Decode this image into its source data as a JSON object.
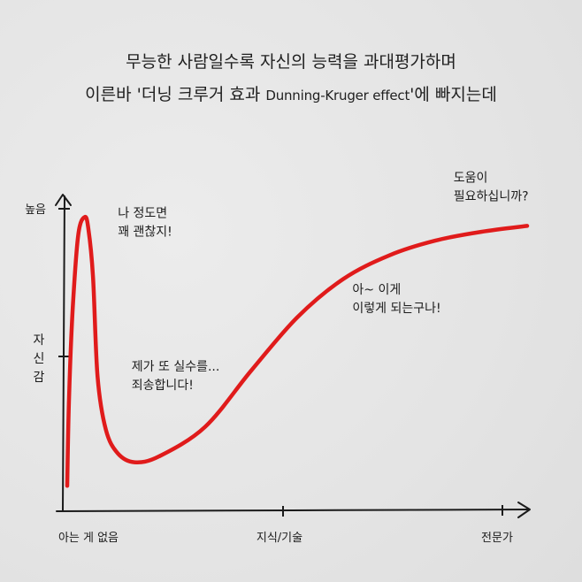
{
  "header": {
    "line1": "무능한 사람일수록 자신의 능력을 과대평가하며",
    "line2_before": "이른바 '더닝 크루거 효과 ",
    "line2_en": "Dunning-Kruger effect",
    "line2_after": "'에 빠지는데"
  },
  "chart_data": {
    "type": "line",
    "xlabel": "",
    "ylabel": "자신감",
    "x_ticks": [
      "아는 게 없음",
      "지식/기술",
      "전문가"
    ],
    "y_ticks": [
      "높음"
    ],
    "xlim": [
      0,
      1
    ],
    "ylim": [
      0,
      1
    ],
    "series": [
      {
        "color": "#e01b1b",
        "x": [
          0.0,
          0.004,
          0.012,
          0.024,
          0.038,
          0.046,
          0.056,
          0.066,
          0.084,
          0.11,
          0.146,
          0.2,
          0.3,
          0.4,
          0.5,
          0.6,
          0.7,
          0.8,
          0.9,
          1.0
        ],
        "y": [
          0.05,
          0.35,
          0.65,
          0.9,
          0.96,
          0.92,
          0.76,
          0.42,
          0.24,
          0.16,
          0.13,
          0.15,
          0.25,
          0.44,
          0.62,
          0.75,
          0.83,
          0.88,
          0.91,
          0.93
        ]
      }
    ],
    "annotations": [
      {
        "lines": [
          "나 정도면",
          "꽤 괜찮지!"
        ],
        "x": 0.11,
        "y": 0.96
      },
      {
        "lines": [
          "제가 또 실수를...",
          "죄송합니다!"
        ],
        "x": 0.14,
        "y": 0.44
      },
      {
        "lines": [
          "아~ 이게",
          "이렇게 되는구나!"
        ],
        "x": 0.62,
        "y": 0.7
      },
      {
        "lines": [
          "도움이",
          "필요하십니까?"
        ],
        "x": 0.84,
        "y": 1.08
      }
    ]
  }
}
